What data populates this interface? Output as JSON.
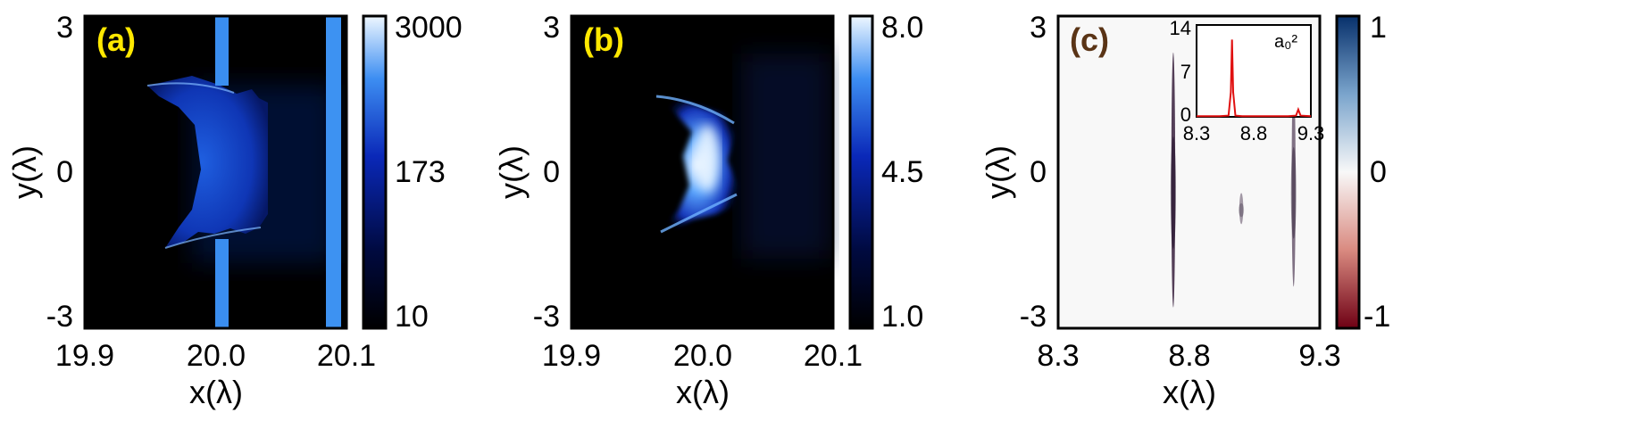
{
  "colors": {
    "yellow_label": "#ffe800",
    "panel_c_label": "#5a3416",
    "inset_line": "#e01010"
  },
  "chart_data": [
    {
      "type": "heatmap",
      "panel_label": "(a)",
      "xlabel": "x(λ)",
      "ylabel": "y(λ)",
      "xticks": [
        "19.9",
        "20.0",
        "20.1"
      ],
      "yticks": [
        "3",
        "0",
        "-3"
      ],
      "xlim": [
        19.9,
        20.1
      ],
      "ylim": [
        -3,
        3
      ],
      "colormap": [
        "#000000",
        "#000a30",
        "#0a1ea8",
        "#1e6ae6",
        "#5fb0ff",
        "#e6f3ff"
      ],
      "colorbar_ticks": [
        "3000",
        "173",
        "10"
      ],
      "colorbar_scale": "log"
    },
    {
      "type": "heatmap",
      "panel_label": "(b)",
      "xlabel": "x(λ)",
      "ylabel": "y(λ)",
      "xticks": [
        "19.9",
        "20.0",
        "20.1"
      ],
      "yticks": [
        "3",
        "0",
        "-3"
      ],
      "xlim": [
        19.9,
        20.1
      ],
      "ylim": [
        -3,
        3
      ],
      "colormap": [
        "#000000",
        "#000a30",
        "#0a1ea8",
        "#1e6ae6",
        "#5fb0ff",
        "#e6f3ff"
      ],
      "colorbar_ticks": [
        "8.0",
        "4.5",
        "1.0"
      ]
    },
    {
      "type": "heatmap",
      "panel_label": "(c)",
      "xlabel": "x(λ)",
      "ylabel": "y(λ)",
      "xticks": [
        "8.3",
        "8.8",
        "9.3"
      ],
      "yticks": [
        "3",
        "0",
        "-3"
      ],
      "xlim": [
        8.3,
        9.3
      ],
      "ylim": [
        -3,
        3
      ],
      "colormap": [
        "#6e0014",
        "#d98a80",
        "#f8f8f8",
        "#7aa4cc",
        "#07306b"
      ],
      "colorbar_ticks": [
        "1",
        "0",
        "-1"
      ],
      "streaks": [
        {
          "x": 8.74,
          "y_from": 2.3,
          "y_to": -2.6,
          "value": -1
        },
        {
          "x": 9.0,
          "y_from": -0.4,
          "y_to": -1.0,
          "value": -0.3
        },
        {
          "x": 9.2,
          "y_from": 1.8,
          "y_to": -2.2,
          "value": -0.6
        }
      ],
      "inset": {
        "type": "line",
        "label": "a₀²",
        "xticks": [
          "8.3",
          "8.8",
          "9.3"
        ],
        "yticks": [
          "14",
          "7",
          "0"
        ],
        "xlim": [
          8.3,
          9.3
        ],
        "ylim": [
          0,
          14
        ],
        "x": [
          8.3,
          8.5,
          8.58,
          8.6,
          8.61,
          8.62,
          8.64,
          8.7,
          9.1,
          9.17,
          9.19,
          9.21,
          9.3
        ],
        "y": [
          0.1,
          0.1,
          0.2,
          4.0,
          12.5,
          4.0,
          0.2,
          0.1,
          0.1,
          0.2,
          1.2,
          0.2,
          0.1
        ]
      }
    }
  ]
}
